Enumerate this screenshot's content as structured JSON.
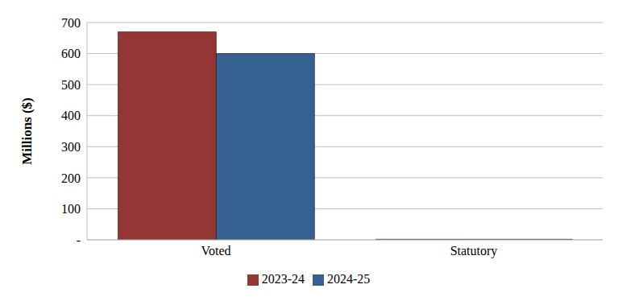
{
  "chart_data": {
    "type": "bar",
    "y_label": "Millions ($)",
    "categories": [
      "Voted",
      "Statutory"
    ],
    "series": [
      {
        "name": "2023-24",
        "color": "#943634",
        "values": [
          670,
          2
        ]
      },
      {
        "name": "2024-25",
        "color": "#376092",
        "values": [
          600,
          2
        ]
      }
    ],
    "ylim": [
      0,
      700
    ],
    "yticks": [
      {
        "value": 0,
        "label": "-"
      },
      100,
      200,
      300,
      400,
      500,
      600,
      700
    ],
    "grid": true,
    "legend": "bottom"
  }
}
